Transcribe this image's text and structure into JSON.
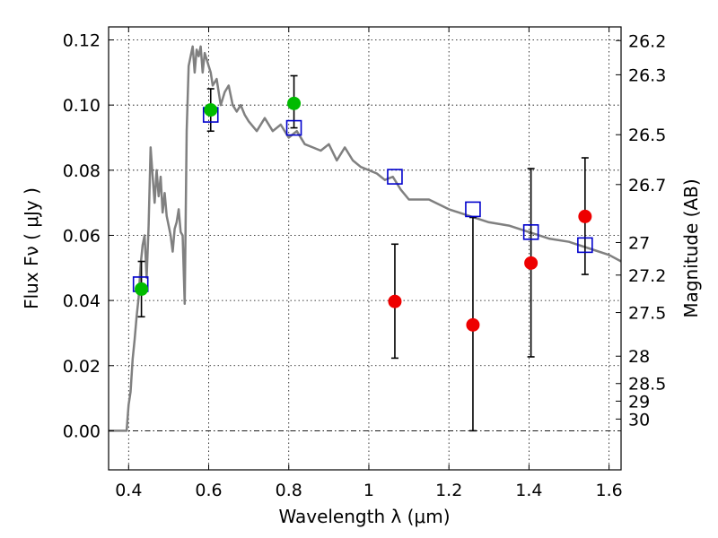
{
  "chart_data": {
    "type": "scatter",
    "xlabel": "Wavelength  λ (μm)",
    "ylabel": "Flux  Fν  ( μJy )",
    "y2label": "Magnitude (AB)",
    "xlim": [
      0.35,
      1.63
    ],
    "ylim": [
      -0.012,
      0.124
    ],
    "x_ticks": [
      {
        "value": 0.4,
        "label": "0.4"
      },
      {
        "value": 0.6,
        "label": "0.6"
      },
      {
        "value": 0.8,
        "label": "0.8"
      },
      {
        "value": 1.0,
        "label": "1"
      },
      {
        "value": 1.2,
        "label": "1.2"
      },
      {
        "value": 1.4,
        "label": "1.4"
      },
      {
        "value": 1.6,
        "label": "1.6"
      }
    ],
    "y_ticks": [
      {
        "value": 0.0,
        "label": "0.00"
      },
      {
        "value": 0.02,
        "label": "0.02"
      },
      {
        "value": 0.04,
        "label": "0.04"
      },
      {
        "value": 0.06,
        "label": "0.06"
      },
      {
        "value": 0.08,
        "label": "0.08"
      },
      {
        "value": 0.1,
        "label": "0.10"
      },
      {
        "value": 0.12,
        "label": "0.12"
      }
    ],
    "y2_ticks": [
      {
        "flux": 0.1198,
        "label": "26.2"
      },
      {
        "flux": 0.1093,
        "label": "26.3"
      },
      {
        "flux": 0.0909,
        "label": "26.5"
      },
      {
        "flux": 0.0756,
        "label": "26.7"
      },
      {
        "flux": 0.0578,
        "label": "27"
      },
      {
        "flux": 0.0478,
        "label": "27.2"
      },
      {
        "flux": 0.0363,
        "label": "27.5"
      },
      {
        "flux": 0.0229,
        "label": "28"
      },
      {
        "flux": 0.0145,
        "label": "28.5"
      },
      {
        "flux": 0.0091,
        "label": "29"
      },
      {
        "flux": 0.0036,
        "label": "30"
      }
    ],
    "grid": true,
    "zero_line": true,
    "colors": {
      "model": "#808080",
      "model_points": "#0000cc",
      "detection": "#00bb00",
      "upper_limit": "#ee0000",
      "errorbar": "#000000"
    },
    "series": [
      {
        "type": "line",
        "x": [
          0.35,
          0.385,
          0.395,
          0.4,
          0.405,
          0.41,
          0.415,
          0.42,
          0.425,
          0.43,
          0.435,
          0.44,
          0.445,
          0.45,
          0.455,
          0.46,
          0.465,
          0.47,
          0.475,
          0.48,
          0.485,
          0.49,
          0.495,
          0.5,
          0.505,
          0.51,
          0.515,
          0.52,
          0.525,
          0.53,
          0.535,
          0.54,
          0.545,
          0.55,
          0.555,
          0.56,
          0.565,
          0.57,
          0.575,
          0.58,
          0.585,
          0.59,
          0.595,
          0.6,
          0.605,
          0.61,
          0.62,
          0.63,
          0.64,
          0.65,
          0.66,
          0.67,
          0.68,
          0.69,
          0.7,
          0.72,
          0.74,
          0.76,
          0.78,
          0.8,
          0.82,
          0.84,
          0.86,
          0.88,
          0.9,
          0.92,
          0.94,
          0.96,
          0.98,
          1.0,
          1.02,
          1.04,
          1.06,
          1.08,
          1.1,
          1.15,
          1.2,
          1.25,
          1.3,
          1.35,
          1.4,
          1.45,
          1.5,
          1.55,
          1.6,
          1.63
        ],
        "y": [
          0.0,
          0.0,
          0.0,
          0.008,
          0.012,
          0.022,
          0.028,
          0.035,
          0.041,
          0.051,
          0.057,
          0.06,
          0.047,
          0.063,
          0.087,
          0.078,
          0.07,
          0.08,
          0.072,
          0.078,
          0.067,
          0.073,
          0.066,
          0.063,
          0.06,
          0.055,
          0.062,
          0.064,
          0.068,
          0.061,
          0.06,
          0.039,
          0.092,
          0.112,
          0.115,
          0.118,
          0.11,
          0.117,
          0.115,
          0.118,
          0.11,
          0.116,
          0.114,
          0.112,
          0.11,
          0.106,
          0.108,
          0.1,
          0.104,
          0.106,
          0.1,
          0.098,
          0.1,
          0.097,
          0.095,
          0.092,
          0.096,
          0.092,
          0.094,
          0.09,
          0.092,
          0.088,
          0.087,
          0.086,
          0.088,
          0.083,
          0.087,
          0.083,
          0.081,
          0.08,
          0.079,
          0.077,
          0.078,
          0.074,
          0.071,
          0.071,
          0.068,
          0.066,
          0.064,
          0.063,
          0.061,
          0.059,
          0.058,
          0.056,
          0.054,
          0.052
        ]
      },
      {
        "type": "scatter",
        "marker": "open-square",
        "x": [
          0.43,
          0.605,
          0.813,
          1.065,
          1.26,
          1.405,
          1.54
        ],
        "y": [
          0.045,
          0.097,
          0.093,
          0.078,
          0.068,
          0.061,
          0.057
        ]
      },
      {
        "type": "scatter",
        "marker": "filled-circle",
        "x": [
          0.432,
          0.605,
          0.813
        ],
        "y": [
          0.0435,
          0.0985,
          0.1005
        ],
        "yerr_low": [
          0.035,
          0.092,
          0.093
        ],
        "yerr_high": [
          0.052,
          0.105,
          0.109
        ]
      },
      {
        "type": "scatter",
        "marker": "filled-circle",
        "x": [
          1.065,
          1.26,
          1.405,
          1.54
        ],
        "y": [
          0.0397,
          0.0325,
          0.0515,
          0.0658
        ],
        "yerr_low": [
          0.0223,
          0.0,
          0.0227,
          0.048
        ],
        "yerr_high": [
          0.0573,
          0.0655,
          0.0805,
          0.0838
        ]
      }
    ]
  }
}
